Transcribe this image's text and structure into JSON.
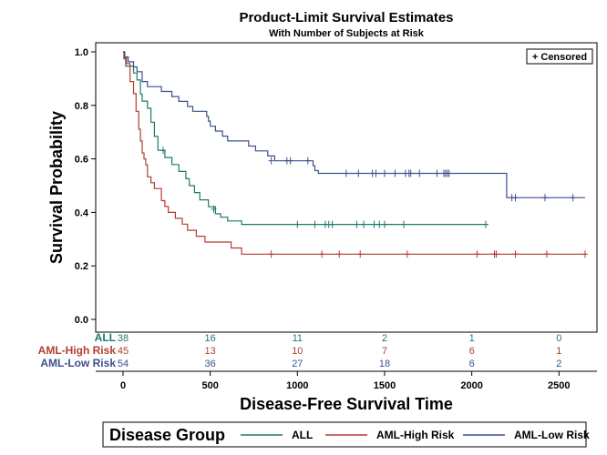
{
  "chart_data": {
    "type": "line",
    "title": "Product-Limit Survival Estimates",
    "subtitle": "With Number of Subjects at Risk",
    "xlabel": "Disease-Free Survival Time",
    "ylabel": "Survival Probability",
    "xlim": [
      0,
      2650
    ],
    "ylim": [
      0,
      1.0
    ],
    "x_ticks": [
      0,
      500,
      1000,
      1500,
      2000,
      2500
    ],
    "x_tick_labels": [
      "0",
      "500",
      "1000",
      "1500",
      "2000",
      "2500"
    ],
    "y_ticks": [
      0.0,
      0.2,
      0.4,
      0.6,
      0.8,
      1.0
    ],
    "y_tick_labels": [
      "0.0",
      "0.2",
      "0.4",
      "0.6",
      "0.8",
      "1.0"
    ],
    "censor_legend": "+ Censored",
    "legend_title": "Disease Group",
    "risk_times": [
      0,
      500,
      1000,
      1500,
      2000,
      2500
    ],
    "series": [
      {
        "name": "ALL",
        "color": "#1f7a6e",
        "at_risk": [
          "38",
          "16",
          "11",
          "2",
          "1",
          "0"
        ],
        "steps": [
          [
            0,
            1.0
          ],
          [
            5,
            0.974
          ],
          [
            15,
            0.947
          ],
          [
            60,
            0.921
          ],
          [
            80,
            0.895
          ],
          [
            100,
            0.842
          ],
          [
            110,
            0.816
          ],
          [
            140,
            0.789
          ],
          [
            160,
            0.737
          ],
          [
            180,
            0.684
          ],
          [
            200,
            0.632
          ],
          [
            240,
            0.605
          ],
          [
            280,
            0.579
          ],
          [
            320,
            0.553
          ],
          [
            360,
            0.526
          ],
          [
            380,
            0.5
          ],
          [
            410,
            0.474
          ],
          [
            440,
            0.447
          ],
          [
            490,
            0.421
          ],
          [
            530,
            0.395
          ],
          [
            560,
            0.382
          ],
          [
            600,
            0.368
          ],
          [
            680,
            0.355
          ],
          [
            2090,
            0.355
          ]
        ],
        "censored": [
          [
            230,
            0.632
          ],
          [
            520,
            0.412
          ],
          [
            1000,
            0.355
          ],
          [
            1100,
            0.355
          ],
          [
            1160,
            0.355
          ],
          [
            1180,
            0.355
          ],
          [
            1200,
            0.355
          ],
          [
            1340,
            0.355
          ],
          [
            1380,
            0.355
          ],
          [
            1440,
            0.355
          ],
          [
            1470,
            0.355
          ],
          [
            1500,
            0.355
          ],
          [
            1610,
            0.355
          ],
          [
            2080,
            0.355
          ]
        ]
      },
      {
        "name": "AML-High Risk",
        "color": "#b13f31",
        "at_risk": [
          "45",
          "13",
          "10",
          "7",
          "6",
          "1"
        ],
        "steps": [
          [
            0,
            1.0
          ],
          [
            5,
            0.978
          ],
          [
            20,
            0.956
          ],
          [
            40,
            0.889
          ],
          [
            60,
            0.844
          ],
          [
            75,
            0.778
          ],
          [
            90,
            0.711
          ],
          [
            100,
            0.667
          ],
          [
            110,
            0.622
          ],
          [
            120,
            0.6
          ],
          [
            130,
            0.578
          ],
          [
            140,
            0.533
          ],
          [
            160,
            0.511
          ],
          [
            180,
            0.489
          ],
          [
            220,
            0.444
          ],
          [
            240,
            0.422
          ],
          [
            260,
            0.4
          ],
          [
            300,
            0.378
          ],
          [
            340,
            0.356
          ],
          [
            370,
            0.333
          ],
          [
            420,
            0.311
          ],
          [
            470,
            0.289
          ],
          [
            620,
            0.267
          ],
          [
            680,
            0.244
          ],
          [
            2650,
            0.244
          ]
        ],
        "censored": [
          [
            850,
            0.244
          ],
          [
            1140,
            0.244
          ],
          [
            1240,
            0.244
          ],
          [
            1360,
            0.244
          ],
          [
            1630,
            0.244
          ],
          [
            2030,
            0.244
          ],
          [
            2130,
            0.244
          ],
          [
            2140,
            0.244
          ],
          [
            2250,
            0.244
          ],
          [
            2430,
            0.244
          ],
          [
            2650,
            0.244
          ]
        ]
      },
      {
        "name": "AML-Low Risk",
        "color": "#3d4f8e",
        "at_risk": [
          "54",
          "36",
          "27",
          "18",
          "6",
          "2"
        ],
        "steps": [
          [
            0,
            1.0
          ],
          [
            10,
            0.981
          ],
          [
            30,
            0.963
          ],
          [
            60,
            0.944
          ],
          [
            80,
            0.926
          ],
          [
            110,
            0.889
          ],
          [
            140,
            0.87
          ],
          [
            220,
            0.852
          ],
          [
            280,
            0.833
          ],
          [
            320,
            0.815
          ],
          [
            370,
            0.796
          ],
          [
            400,
            0.778
          ],
          [
            480,
            0.759
          ],
          [
            490,
            0.741
          ],
          [
            500,
            0.722
          ],
          [
            530,
            0.704
          ],
          [
            570,
            0.685
          ],
          [
            600,
            0.667
          ],
          [
            720,
            0.648
          ],
          [
            760,
            0.63
          ],
          [
            830,
            0.611
          ],
          [
            870,
            0.593
          ],
          [
            1090,
            0.574
          ],
          [
            1100,
            0.556
          ],
          [
            1120,
            0.546
          ],
          [
            2200,
            0.455
          ],
          [
            2650,
            0.455
          ]
        ],
        "censored": [
          [
            850,
            0.593
          ],
          [
            940,
            0.593
          ],
          [
            960,
            0.593
          ],
          [
            1060,
            0.593
          ],
          [
            1280,
            0.546
          ],
          [
            1350,
            0.546
          ],
          [
            1430,
            0.546
          ],
          [
            1450,
            0.546
          ],
          [
            1500,
            0.546
          ],
          [
            1560,
            0.546
          ],
          [
            1620,
            0.546
          ],
          [
            1640,
            0.546
          ],
          [
            1650,
            0.546
          ],
          [
            1700,
            0.546
          ],
          [
            1800,
            0.546
          ],
          [
            1840,
            0.546
          ],
          [
            1850,
            0.546
          ],
          [
            1860,
            0.546
          ],
          [
            1870,
            0.546
          ],
          [
            2230,
            0.455
          ],
          [
            2250,
            0.455
          ],
          [
            2420,
            0.455
          ],
          [
            2580,
            0.455
          ]
        ]
      }
    ]
  }
}
